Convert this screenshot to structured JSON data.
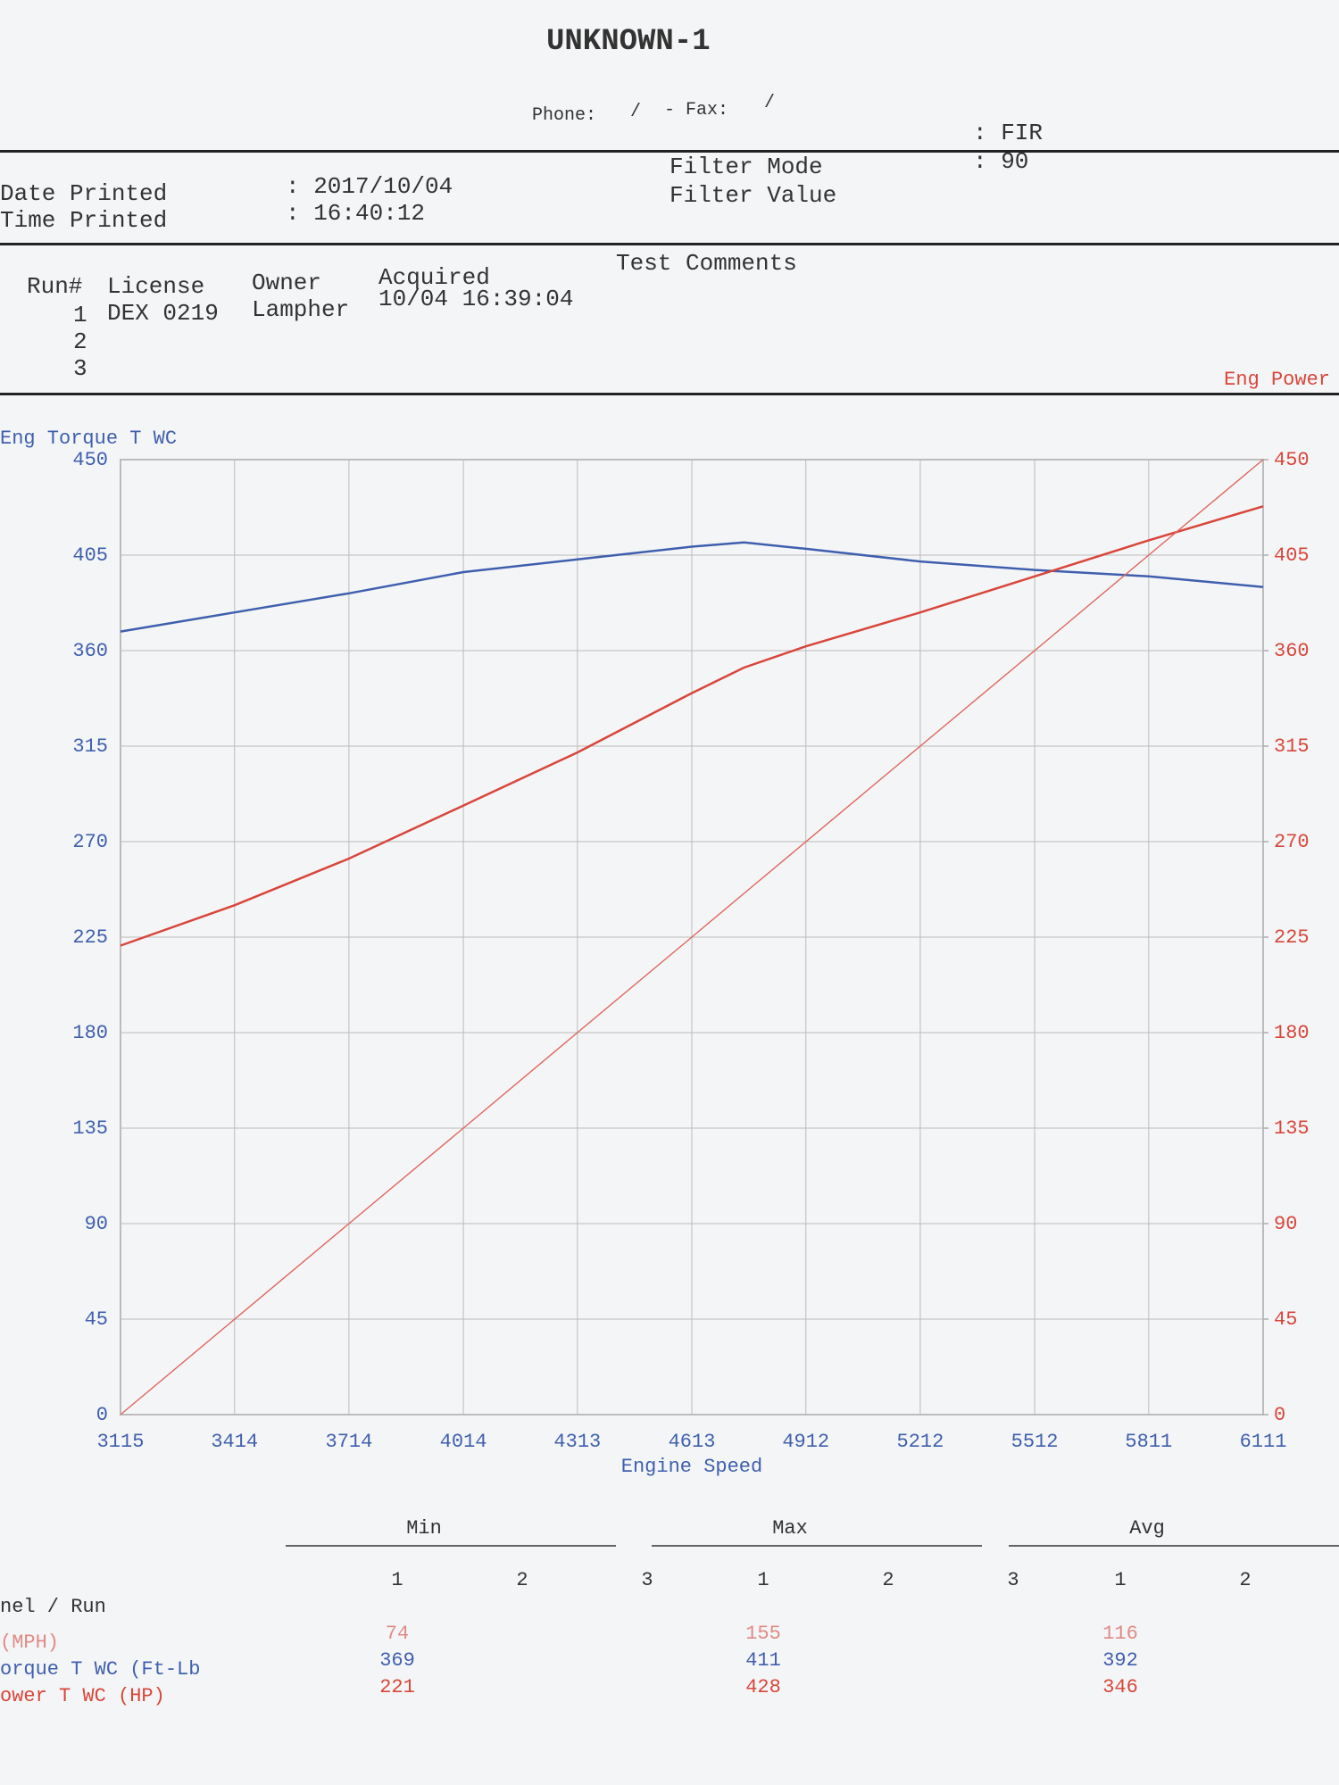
{
  "header": {
    "title": "UNKNOWN-1",
    "phone_label": "Phone:",
    "phone": "/",
    "fax_label": "- Fax:",
    "fax": "/"
  },
  "info": {
    "date_label": "Date Printed",
    "date": ": 2017/10/04",
    "time_label": "Time Printed",
    "time": ": 16:40:12",
    "filter_mode_label": "Filter Mode",
    "filter_mode": ": FIR",
    "filter_value_label": "Filter Value",
    "filter_value": ": 90"
  },
  "runs": {
    "headers": [
      "Run#",
      "License",
      "Owner",
      "Acquired",
      "Test Comments"
    ],
    "rows": [
      [
        "1",
        "DEX 0219",
        "Lampher",
        "10/04 16:39:04"
      ],
      [
        "2"
      ],
      [
        "3"
      ]
    ]
  },
  "chart_data": {
    "type": "line",
    "x_label": "Engine Speed",
    "y_label": "Eng Torque T WC",
    "y2_label": "Eng Power",
    "x": [
      3115,
      3414,
      3714,
      4014,
      4313,
      4613,
      4750,
      4912,
      5212,
      5512,
      5811,
      6111
    ],
    "series": [
      {
        "name": "Eng Torque T WC",
        "color": "#3f5fae",
        "values": [
          369,
          378,
          387,
          397,
          403,
          409,
          411,
          408,
          402,
          398,
          395,
          390
        ]
      },
      {
        "name": "Eng Power",
        "color": "#d9463a",
        "axis": "y2",
        "values": [
          221,
          240,
          262,
          287,
          312,
          340,
          352,
          362,
          378,
          395,
          412,
          428
        ]
      },
      {
        "color": "#e0665c",
        "axis": "y2",
        "values": [
          0,
          44.9,
          90,
          135,
          180,
          225,
          245.6,
          269.9,
          315,
          360,
          405,
          450
        ]
      }
    ],
    "xlim": [
      3115,
      6111
    ],
    "xticks": [
      3115,
      3414,
      3714,
      4014,
      4313,
      4613,
      4912,
      5212,
      5512,
      5811,
      6111
    ],
    "ylim": [
      0,
      450
    ],
    "yticks": [
      0,
      45,
      90,
      135,
      180,
      225,
      270,
      315,
      360,
      405,
      450
    ],
    "y2lim": [
      0,
      450
    ],
    "y2ticks": [
      0,
      45,
      90,
      135,
      180,
      225,
      270,
      315,
      360,
      405,
      450
    ],
    "grid": true
  },
  "summary": {
    "groups": [
      "Min",
      "Max",
      "Avg"
    ],
    "runs": [
      [
        "1",
        "2",
        "3"
      ],
      [
        "1",
        "2",
        "3"
      ],
      [
        "1",
        "2"
      ]
    ],
    "channel_header": "nel / Run",
    "rows": [
      {
        "label": "(MPH)",
        "color": "#e08a86",
        "values": [
          74,
          155,
          116
        ]
      },
      {
        "label": "orque T WC (Ft-Lb",
        "color": "#3f5fae",
        "values": [
          369,
          411,
          392
        ]
      },
      {
        "label": "ower T WC (HP)",
        "color": "#d9463a",
        "values": [
          221,
          428,
          346
        ]
      }
    ]
  }
}
